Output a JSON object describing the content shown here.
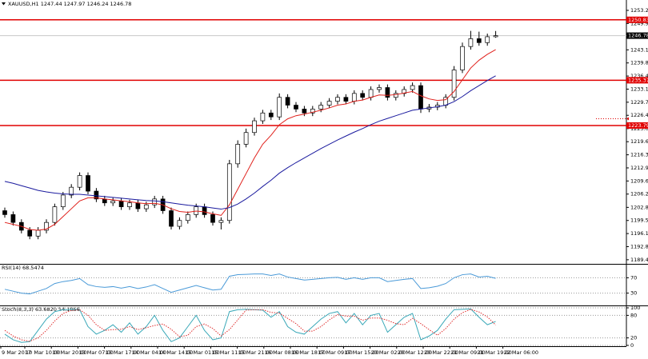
{
  "chart_data": {
    "type": "candlestick",
    "title": "XAUUSD,H1 1247.44 1247.97 1246.24 1246.78",
    "open": [
      1202,
      1201,
      1199,
      1197,
      1195.5,
      1197,
      1199,
      1203,
      1206,
      1208,
      1211,
      1207,
      1205,
      1204,
      1204.5,
      1203,
      1204,
      1202.5,
      1203.5,
      1205,
      1202,
      1198,
      1199.5,
      1201,
      1203,
      1201,
      1199,
      1199.5,
      1214,
      1219,
      1222,
      1225,
      1227,
      1226,
      1231,
      1229,
      1228,
      1227,
      1228,
      1229,
      1230,
      1231,
      1230,
      1232,
      1231,
      1233,
      1233.5,
      1231,
      1232,
      1233,
      1234,
      1228,
      1228.5,
      1229,
      1231,
      1238,
      1244,
      1246,
      1245,
      1246.5
    ],
    "high": [
      1202.8,
      1201.8,
      1199.8,
      1197.8,
      1197.8,
      1199.8,
      1203.8,
      1206.8,
      1208.8,
      1211.8,
      1211.8,
      1207.8,
      1205.8,
      1205.3,
      1205.3,
      1204.8,
      1204.8,
      1204.3,
      1205.8,
      1205.8,
      1202.8,
      1200.3,
      1201.8,
      1203.8,
      1203.8,
      1201.8,
      1200.3,
      1215,
      1220,
      1223,
      1225.8,
      1227.8,
      1227.8,
      1232,
      1231.8,
      1229.8,
      1228.8,
      1228.8,
      1229.8,
      1230.8,
      1231.8,
      1231.8,
      1232.8,
      1232.8,
      1233.8,
      1234.3,
      1234.3,
      1232.8,
      1233.8,
      1234.8,
      1234.8,
      1229.3,
      1229.8,
      1231.8,
      1239,
      1245,
      1248,
      1247.8,
      1247.3,
      1247.97
    ],
    "low": [
      1200.2,
      1198.2,
      1196.2,
      1194.7,
      1194.7,
      1196.2,
      1198.2,
      1202.2,
      1205.2,
      1207.2,
      1206.2,
      1204.2,
      1203.2,
      1203.2,
      1202.2,
      1202.2,
      1201.7,
      1201.7,
      1202.7,
      1201.2,
      1197.2,
      1197.2,
      1198.7,
      1200.2,
      1200.2,
      1198.2,
      1197.2,
      1198.7,
      1213,
      1218.2,
      1221.2,
      1224.2,
      1225.2,
      1225.2,
      1228.2,
      1227.2,
      1226.2,
      1226.2,
      1227.2,
      1228.2,
      1229.2,
      1229.2,
      1229.2,
      1230.2,
      1230.2,
      1232.2,
      1230.2,
      1230.2,
      1231.2,
      1232.2,
      1227,
      1227.2,
      1227.7,
      1228.2,
      1230.2,
      1237.2,
      1243.2,
      1244.2,
      1244.2,
      1246.24
    ],
    "close": [
      1201,
      1199,
      1197,
      1195.5,
      1197,
      1199,
      1203,
      1206,
      1208,
      1211,
      1207,
      1205,
      1204,
      1204.5,
      1203,
      1204,
      1202.5,
      1203.5,
      1205,
      1202,
      1198,
      1199.5,
      1201,
      1203,
      1201,
      1199,
      1199.5,
      1214,
      1219,
      1222,
      1225,
      1227,
      1226,
      1231,
      1229,
      1228,
      1227,
      1228,
      1229,
      1230,
      1231,
      1230,
      1232,
      1231,
      1233,
      1233.5,
      1231,
      1232,
      1233,
      1234,
      1228,
      1228.5,
      1229,
      1231,
      1238,
      1244,
      1246,
      1245,
      1246.5,
      1246.78
    ],
    "up_color": "#ffffff",
    "down_color": "#000000",
    "series": [
      {
        "color": "#e0201b",
        "values": [
          1199,
          1198.5,
          1198,
          1197.2,
          1197,
          1197.3,
          1198.5,
          1200.5,
          1202.5,
          1204.5,
          1205.3,
          1205.3,
          1205,
          1204.8,
          1204.5,
          1204.3,
          1204,
          1203.8,
          1203.9,
          1203.5,
          1202.5,
          1201.8,
          1201.6,
          1201.9,
          1201.7,
          1201.2,
          1200.8,
          1203.5,
          1207.5,
          1211.5,
          1215.5,
          1219,
          1221.3,
          1224,
          1225.5,
          1226.3,
          1226.7,
          1227.2,
          1227.7,
          1228.3,
          1229,
          1229.3,
          1230,
          1230.3,
          1231,
          1231.6,
          1231.5,
          1231.7,
          1232.1,
          1232.5,
          1231.4,
          1230.6,
          1230.2,
          1230.4,
          1232.5,
          1235.5,
          1238.5,
          1240.5,
          1242,
          1243.2
        ]
      },
      {
        "color": "#1a1a9e",
        "values": [
          1209.5,
          1209,
          1208.4,
          1207.8,
          1207.2,
          1206.8,
          1206.5,
          1206.3,
          1206.2,
          1206.2,
          1206,
          1205.8,
          1205.6,
          1205.4,
          1205.2,
          1205,
          1204.8,
          1204.6,
          1204.5,
          1204.3,
          1204,
          1203.7,
          1203.4,
          1203.2,
          1203,
          1202.7,
          1202.4,
          1202.8,
          1203.7,
          1205,
          1206.5,
          1208.2,
          1209.8,
          1211.6,
          1213,
          1214.3,
          1215.5,
          1216.7,
          1217.9,
          1219,
          1220.1,
          1221.1,
          1222.1,
          1223,
          1224,
          1224.9,
          1225.6,
          1226.3,
          1227,
          1227.7,
          1228,
          1228.3,
          1228.6,
          1229,
          1229.9,
          1231.2,
          1232.7,
          1234,
          1235.3,
          1236.5
        ]
      }
    ],
    "levels": [
      1250.83,
      1235.37,
      1223.79
    ],
    "level_color": "#e00000",
    "last_price": 1246.78,
    "ylim": [
      1188.4,
      1255.9
    ],
    "yticks": [
      1253.25,
      {
        "value": 1249.9,
        "label": "1249.90"
      },
      1243.15,
      {
        "value": 1239.8,
        "label": "1239.80"
      },
      1236.45,
      {
        "value": 1233.1,
        "label": "1233.10"
      },
      1229.75,
      {
        "value": 1226.4,
        "label": "1226.40"
      },
      {
        "value": 1223,
        "label": "1223.00"
      },
      1219.65,
      {
        "value": 1216.3,
        "label": "1216.30"
      },
      1212.95,
      {
        "value": 1209.6,
        "label": "1209.60"
      },
      1206.25,
      1202.85,
      {
        "value": 1199.5,
        "label": "1199.50"
      },
      1196.15,
      {
        "value": 1192.8,
        "label": "1192.80"
      },
      1189.45
    ],
    "x_labels": [
      "9 Mar 2017",
      "10 Mar 10:00",
      "10 Mar 20:00",
      "13 Mar 07:00",
      "13 Mar 17:00",
      "14 Mar 04:00",
      "14 Mar 14:00",
      "15 Mar 01:00",
      "15 Mar 11:00",
      "15 Mar 21:00",
      "16 Mar 08:00",
      "16 Mar 18:00",
      "17 Mar 09:00",
      "17 Mar 15:00",
      "20 Mar 02:00",
      "20 Mar 12:00",
      "20 Mar 22:00",
      "21 Mar 09:00",
      "21 Mar 19:00",
      "22 Mar 06:00"
    ],
    "rsi": {
      "title": "RSI(14) 68.5474",
      "color": "#4a9ad8",
      "values": [
        40,
        35,
        30,
        28,
        35,
        42,
        55,
        60,
        63,
        68,
        52,
        47,
        45,
        47,
        43,
        47,
        42,
        46,
        52,
        42,
        32,
        38,
        44,
        50,
        44,
        38,
        40,
        74,
        78,
        79,
        80,
        80,
        76,
        80,
        72,
        68,
        64,
        66,
        68,
        70,
        71,
        66,
        70,
        66,
        70,
        70,
        60,
        63,
        66,
        68,
        42,
        44,
        48,
        55,
        70,
        78,
        80,
        72,
        74,
        68.5474
      ],
      "ylim": [
        0,
        100
      ],
      "yticks": [
        70,
        30
      ]
    },
    "stoch": {
      "title": "Stoch(8,3,3) 63.6820 54.1856",
      "series": [
        {
          "color": "#3aa8b8",
          "values": [
            30,
            15,
            8,
            10,
            40,
            70,
            90,
            95,
            96,
            95,
            50,
            30,
            40,
            55,
            35,
            60,
            30,
            50,
            80,
            40,
            10,
            20,
            50,
            80,
            40,
            15,
            20,
            90,
            95,
            96,
            95,
            94,
            75,
            90,
            50,
            35,
            30,
            50,
            70,
            85,
            90,
            60,
            85,
            55,
            80,
            85,
            35,
            55,
            75,
            85,
            15,
            25,
            40,
            70,
            95,
            96,
            97,
            75,
            55,
            63.682
          ]
        },
        {
          "color": "#e03030",
          "values": [
            40,
            25,
            15,
            11,
            20,
            40,
            65,
            85,
            93,
            95,
            80,
            55,
            40,
            42,
            43,
            50,
            42,
            47,
            53,
            57,
            43,
            23,
            27,
            50,
            57,
            45,
            25,
            42,
            68,
            94,
            95,
            95,
            88,
            86,
            72,
            58,
            38,
            38,
            50,
            68,
            82,
            78,
            78,
            67,
            73,
            73,
            67,
            58,
            55,
            72,
            58,
            42,
            27,
            45,
            70,
            87,
            96,
            89,
            76,
            54.1856
          ]
        }
      ],
      "ylim": [
        0,
        100
      ],
      "yticks": [
        100,
        80,
        20,
        0
      ]
    }
  }
}
